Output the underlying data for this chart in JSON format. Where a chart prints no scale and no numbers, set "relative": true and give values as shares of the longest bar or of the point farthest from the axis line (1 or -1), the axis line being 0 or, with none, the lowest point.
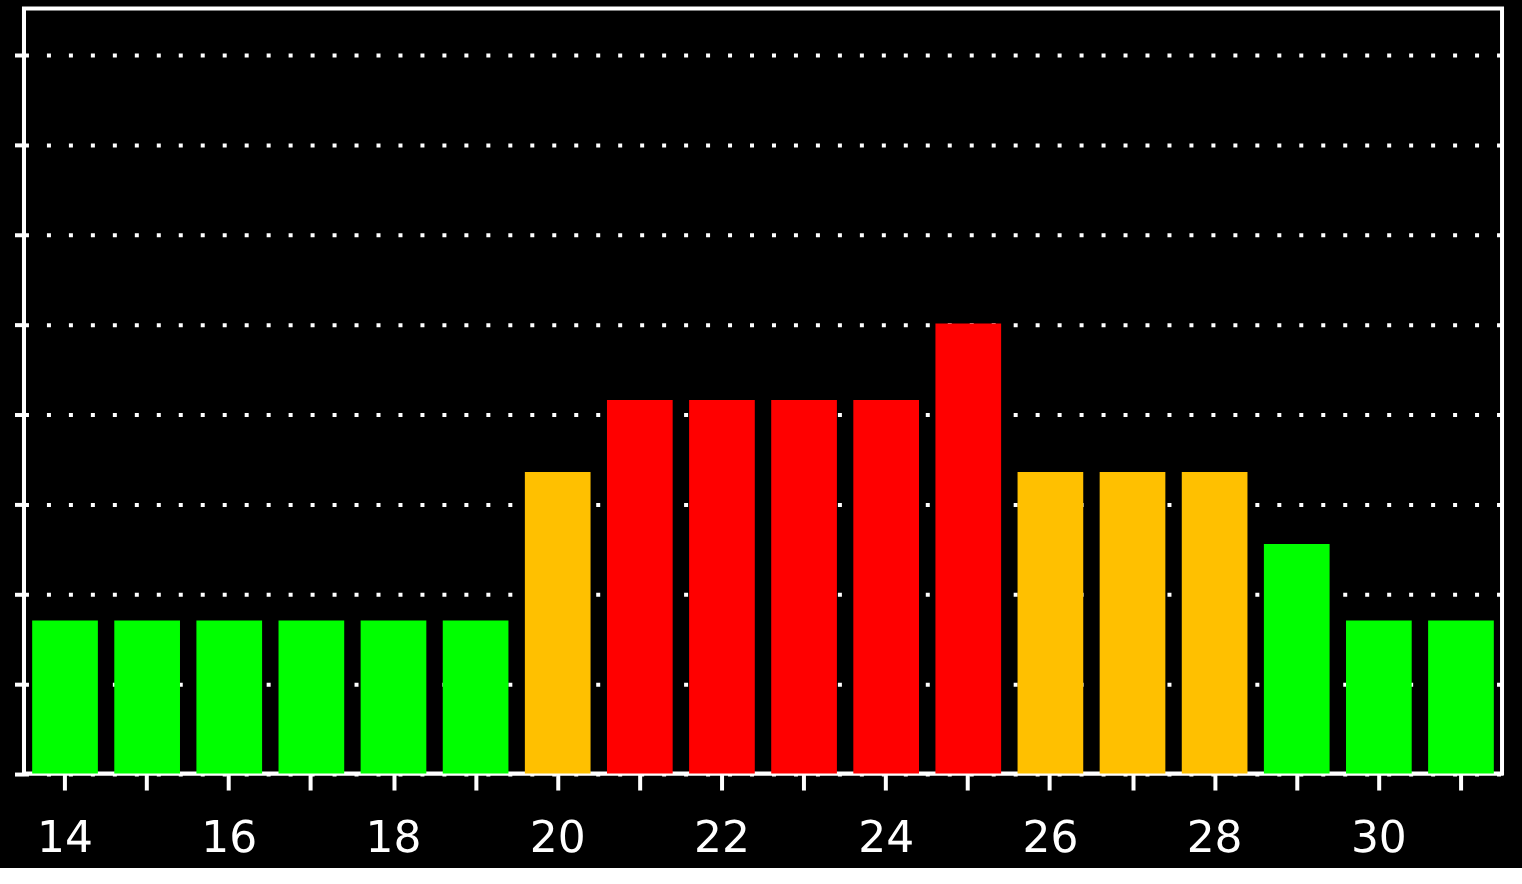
{
  "chart_data": {
    "type": "bar",
    "relative": true,
    "grid": "y",
    "categories": [
      "14",
      null,
      "16",
      null,
      "18",
      null,
      "20",
      null,
      "22",
      null,
      "24",
      null,
      "26",
      null,
      "28",
      null,
      "30",
      null
    ],
    "values": [
      0.34,
      0.34,
      0.34,
      0.34,
      0.34,
      0.34,
      0.67,
      0.83,
      0.83,
      0.83,
      0.83,
      1,
      0.67,
      0.67,
      0.67,
      0.51,
      0.34,
      0.34
    ],
    "colors": [
      "#00ff00",
      "#00ff00",
      "#00ff00",
      "#00ff00",
      "#00ff00",
      "#00ff00",
      "#ffc000",
      "#ff0000",
      "#ff0000",
      "#ff0000",
      "#ff0000",
      "#ff0000",
      "#ffc000",
      "#ffc000",
      "#ffc000",
      "#00ff00",
      "#00ff00",
      "#00ff00"
    ]
  }
}
